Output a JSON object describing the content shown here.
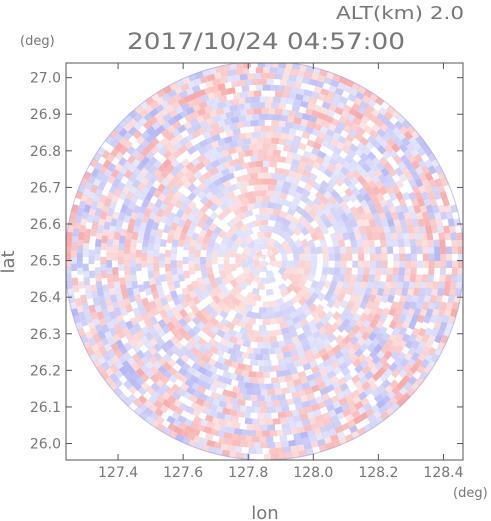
{
  "header": {
    "altitude_label": "ALT(km) 2.0",
    "timestamp": "2017/10/24 04:57:00"
  },
  "colors": {
    "positive": "#f7a8a8",
    "negative": "#b2b4f4",
    "frame": "#555555",
    "text": "#777777"
  },
  "chart_data": {
    "type": "heatmap",
    "title": "2017/10/24 04:57:00",
    "subtitle": "ALT(km) 2.0",
    "xlabel": "lon",
    "ylabel": "lat",
    "x_unit": "(deg)",
    "y_unit": "(deg)",
    "xlim": [
      127.24,
      128.46
    ],
    "ylim": [
      25.955,
      27.04
    ],
    "x_ticks": [
      127.4,
      127.6,
      127.8,
      128.0,
      128.2,
      128.4
    ],
    "x_tick_labels": [
      "127.4",
      "127.6",
      "127.8",
      "128.0",
      "128.2",
      "128.4"
    ],
    "y_ticks": [
      26.0,
      26.1,
      26.2,
      26.3,
      26.4,
      26.5,
      26.6,
      26.7,
      26.8,
      26.9,
      27.0
    ],
    "y_tick_labels": [
      "26.0",
      "26.1",
      "26.2",
      "26.3",
      "26.4",
      "26.5",
      "26.6",
      "26.7",
      "26.8",
      "26.9",
      "27.0"
    ],
    "radar_center": {
      "lon": 127.85,
      "lat": 26.5
    },
    "radar_radius_deg_lat": 0.545,
    "grid": false
  }
}
